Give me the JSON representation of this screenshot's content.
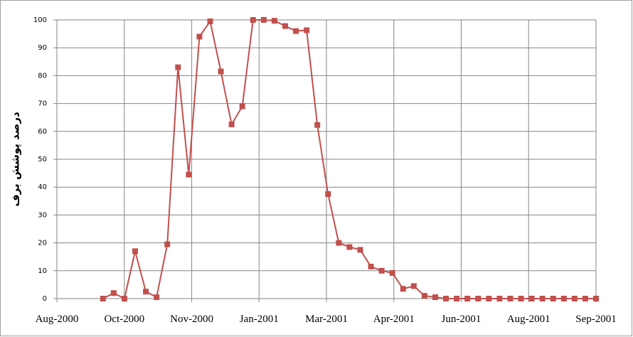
{
  "chart_data": {
    "type": "line",
    "y_label": "درصد پوشش برف",
    "x": [
      0,
      1,
      2,
      3,
      4,
      5,
      6,
      7,
      8,
      9,
      10,
      11,
      12,
      13,
      14,
      15,
      16,
      17,
      18,
      19,
      20,
      21,
      22,
      23,
      24,
      25,
      26,
      27,
      28,
      29,
      30,
      31,
      32,
      33,
      34,
      35,
      36,
      37,
      38,
      39,
      40,
      41,
      42,
      43,
      44,
      45,
      46
    ],
    "series": [
      {
        "color": "#c0504d",
        "values": [
          0,
          2,
          0,
          17,
          2.5,
          0.5,
          19.5,
          83,
          44.5,
          94,
          99.5,
          81.5,
          62.5,
          69,
          100,
          100,
          99.7,
          97.8,
          96,
          96.3,
          62.3,
          37.5,
          20,
          18.5,
          17.5,
          11.5,
          10,
          9.2,
          3.5,
          4.5,
          1,
          0.5,
          0,
          0,
          0,
          0,
          0,
          0,
          0,
          0,
          0,
          0,
          0,
          0,
          0,
          0,
          0
        ]
      }
    ],
    "xlim": [
      -4.3,
      46
    ],
    "xticks": [
      {
        "value": -4.3,
        "label": "Aug-2000"
      },
      {
        "value": 1.99,
        "label": "Oct-2000"
      },
      {
        "value": 8.28,
        "label": "Nov-2000"
      },
      {
        "value": 14.56,
        "label": "Jan-2001"
      },
      {
        "value": 20.85,
        "label": "Mar-2001"
      },
      {
        "value": 27.14,
        "label": "Apr-2001"
      },
      {
        "value": 33.42,
        "label": "Jun-2001"
      },
      {
        "value": 39.71,
        "label": "Aug-2001"
      },
      {
        "value": 46,
        "label": "Sep-2001"
      }
    ],
    "ylim": [
      0,
      100
    ],
    "yticks": [
      0,
      10,
      20,
      30,
      40,
      50,
      60,
      70,
      80,
      90,
      100
    ],
    "grid": true
  }
}
